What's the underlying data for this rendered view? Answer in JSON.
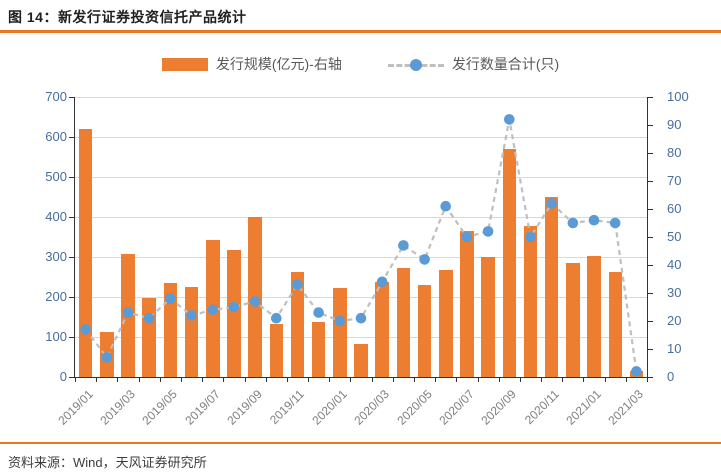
{
  "figure": {
    "title": "图 14：新发行证券投资信托产品统计",
    "source": "资料来源：Wind，天风证券研究所"
  },
  "legend": {
    "bar_label": "发行规模(亿元)-右轴",
    "line_label": "发行数量合计(只)"
  },
  "colors": {
    "bar": "#ed7d31",
    "marker": "#5b9bd5",
    "dash_line": "#bfbfbf",
    "gridline": "#d9d9d9",
    "axis_label_blue": "#476f9e",
    "x_label_gray": "#7f7f7f",
    "accent_rule": "#ee7623"
  },
  "chart_data": {
    "type": "bar+line",
    "title": "图 14：新发行证券投资信托产品统计",
    "categories": [
      "2019/01",
      "2019/02",
      "2019/03",
      "2019/04",
      "2019/05",
      "2019/06",
      "2019/07",
      "2019/08",
      "2019/09",
      "2019/10",
      "2019/11",
      "2019/12",
      "2020/01",
      "2020/02",
      "2020/03",
      "2020/04",
      "2020/05",
      "2020/06",
      "2020/07",
      "2020/08",
      "2020/09",
      "2020/10",
      "2020/11",
      "2020/12",
      "2021/01",
      "2021/02",
      "2021/03"
    ],
    "x_label_every": 2,
    "grid": "horizontal",
    "legend_position": "top-center",
    "left_axis": {
      "min": 0,
      "max": 700,
      "step": 100
    },
    "right_axis": {
      "min": 0,
      "max": 100,
      "step": 10
    },
    "series": [
      {
        "name": "发行规模(亿元)-右轴",
        "type": "bar",
        "axis": "left",
        "color": "#ed7d31",
        "values": [
          620,
          113,
          308,
          198,
          236,
          226,
          342,
          318,
          400,
          132,
          263,
          138,
          223,
          83,
          237,
          273,
          229,
          268,
          365,
          301,
          570,
          378,
          451,
          284,
          303,
          262,
          16
        ]
      },
      {
        "name": "发行数量合计(只)",
        "type": "line",
        "axis": "right",
        "color": "#5b9bd5",
        "line_color": "#bfbfbf",
        "line_style": "dashed",
        "values": [
          17,
          7,
          23,
          21,
          28,
          22,
          24,
          25,
          27,
          21,
          33,
          23,
          20,
          21,
          34,
          47,
          42,
          61,
          50,
          52,
          92,
          50,
          62,
          55,
          56,
          55,
          2
        ]
      }
    ]
  }
}
